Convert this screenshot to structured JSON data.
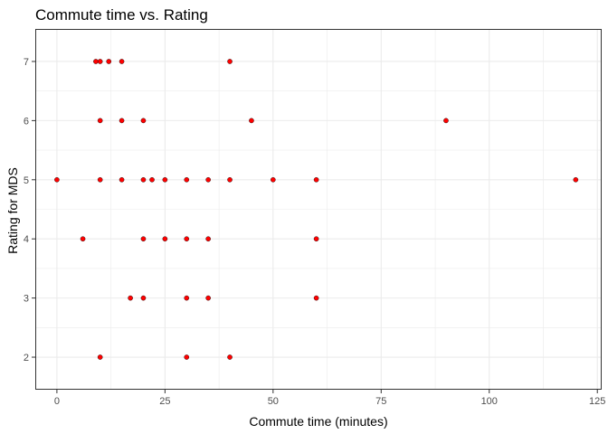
{
  "chart_data": {
    "type": "scatter",
    "title": "Commute time vs. Rating",
    "xlabel": "Commute time (minutes)",
    "ylabel": "Rating for MDS",
    "xlim": [
      -5,
      126
    ],
    "ylim": [
      1.45,
      7.55
    ],
    "x_ticks": [
      0,
      25,
      50,
      75,
      100,
      125
    ],
    "y_ticks": [
      2,
      3,
      4,
      5,
      6,
      7
    ],
    "grid": true,
    "legend": "none",
    "point_color": "#FF0000",
    "points": [
      {
        "x": 9,
        "y": 7
      },
      {
        "x": 10,
        "y": 7
      },
      {
        "x": 12,
        "y": 7
      },
      {
        "x": 15,
        "y": 7
      },
      {
        "x": 40,
        "y": 7
      },
      {
        "x": 10,
        "y": 6
      },
      {
        "x": 15,
        "y": 6
      },
      {
        "x": 20,
        "y": 6
      },
      {
        "x": 45,
        "y": 6
      },
      {
        "x": 90,
        "y": 6
      },
      {
        "x": 0,
        "y": 5
      },
      {
        "x": 10,
        "y": 5
      },
      {
        "x": 15,
        "y": 5
      },
      {
        "x": 20,
        "y": 5
      },
      {
        "x": 22,
        "y": 5
      },
      {
        "x": 25,
        "y": 5
      },
      {
        "x": 30,
        "y": 5
      },
      {
        "x": 35,
        "y": 5
      },
      {
        "x": 40,
        "y": 5
      },
      {
        "x": 50,
        "y": 5
      },
      {
        "x": 60,
        "y": 5
      },
      {
        "x": 120,
        "y": 5
      },
      {
        "x": 6,
        "y": 4
      },
      {
        "x": 20,
        "y": 4
      },
      {
        "x": 25,
        "y": 4
      },
      {
        "x": 30,
        "y": 4
      },
      {
        "x": 35,
        "y": 4
      },
      {
        "x": 60,
        "y": 4
      },
      {
        "x": 17,
        "y": 3
      },
      {
        "x": 20,
        "y": 3
      },
      {
        "x": 30,
        "y": 3
      },
      {
        "x": 35,
        "y": 3
      },
      {
        "x": 60,
        "y": 3
      },
      {
        "x": 10,
        "y": 2
      },
      {
        "x": 30,
        "y": 2
      },
      {
        "x": 40,
        "y": 2
      }
    ]
  }
}
